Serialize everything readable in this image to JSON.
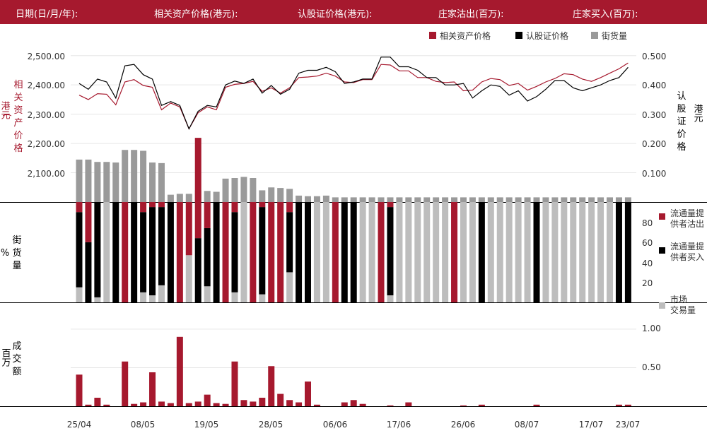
{
  "header": {
    "date_label": "日期(日/月/年):",
    "underlying_label": "相关资产价格(港元):",
    "warrant_label": "认股证价格(港元):",
    "sell_label": "庄家沽出(百万):",
    "buy_label": "庄家买入(百万):"
  },
  "legend": {
    "underlying": "相关资产价格",
    "warrant": "认股证价格",
    "outstanding": "街货量"
  },
  "axes": {
    "left_ylabel_chars": [
      "相",
      "关",
      "资",
      "产",
      "价",
      "格"
    ],
    "left_unit": "港元",
    "right_ylabel_chars": [
      "认",
      "股",
      "证",
      "价",
      "格"
    ],
    "right_unit": "港元",
    "mid_ylabel_chars": [
      "街",
      "货",
      "量"
    ],
    "mid_unit": "%",
    "bottom_ylabel_chars": [
      "成",
      "交",
      "额"
    ],
    "bottom_unit": "百万",
    "left_ticks": [
      "2,500.00",
      "2,400.00",
      "2,300.00",
      "2,200.00",
      "2,100.00"
    ],
    "right_ticks": [
      "0.500",
      "0.400",
      "0.300",
      "0.200",
      "0.100"
    ],
    "mid_ticks": [
      "80",
      "60",
      "40",
      "20"
    ],
    "bottom_ticks": [
      "1.00",
      "0.50"
    ],
    "x_ticks": [
      "25/04",
      "08/05",
      "19/05",
      "28/05",
      "06/06",
      "17/06",
      "26/06",
      "08/07",
      "17/07",
      "23/07"
    ]
  },
  "mid_legend": {
    "sell_line1": "流通量提",
    "sell_line2": "供者沽出",
    "buy_line1": "流通量提",
    "buy_line2": "供者买入",
    "market_line1": "市场",
    "market_line2": "交易量"
  },
  "colors": {
    "accent": "#a6192e",
    "black": "#000000",
    "outstanding_gray": "#9a9a9a",
    "market_gray": "#bdbdbd"
  },
  "chart_data": {
    "type": "line",
    "x_tick_indices": [
      0,
      7,
      14,
      21,
      28,
      35,
      42,
      49,
      56,
      60
    ],
    "underlying_ylim": [
      2000,
      2550
    ],
    "warrant_ylim": [
      0,
      0.55
    ],
    "outstanding_ylim": [
      0,
      0.55
    ],
    "mix_ylim": [
      0,
      100
    ],
    "turnover_ylim": [
      0,
      1.1
    ],
    "underlying": [
      2365,
      2350,
      2370,
      2368,
      2332,
      2410,
      2418,
      2398,
      2392,
      2315,
      2338,
      2325,
      2250,
      2305,
      2325,
      2315,
      2392,
      2402,
      2405,
      2412,
      2378,
      2390,
      2372,
      2390,
      2425,
      2427,
      2430,
      2440,
      2430,
      2410,
      2408,
      2418,
      2418,
      2470,
      2468,
      2448,
      2448,
      2425,
      2425,
      2412,
      2408,
      2410,
      2380,
      2382,
      2410,
      2422,
      2418,
      2398,
      2405,
      2382,
      2395,
      2410,
      2422,
      2438,
      2435,
      2420,
      2412,
      2425,
      2440,
      2455,
      2475
    ],
    "warrant": [
      0.405,
      0.385,
      0.42,
      0.41,
      0.355,
      0.465,
      0.47,
      0.435,
      0.42,
      0.33,
      0.343,
      0.33,
      0.25,
      0.31,
      0.33,
      0.325,
      0.4,
      0.413,
      0.405,
      0.42,
      0.372,
      0.398,
      0.368,
      0.385,
      0.44,
      0.45,
      0.45,
      0.46,
      0.445,
      0.405,
      0.41,
      0.42,
      0.42,
      0.495,
      0.495,
      0.462,
      0.462,
      0.45,
      0.425,
      0.425,
      0.4,
      0.4,
      0.405,
      0.355,
      0.38,
      0.4,
      0.395,
      0.365,
      0.38,
      0.345,
      0.36,
      0.385,
      0.415,
      0.415,
      0.39,
      0.38,
      0.39,
      0.4,
      0.415,
      0.425,
      0.46
    ],
    "outstanding": [
      0.145,
      0.145,
      0.137,
      0.137,
      0.135,
      0.178,
      0.178,
      0.175,
      0.135,
      0.133,
      0.025,
      0.028,
      0.028,
      0.04,
      0.038,
      0.035,
      0.08,
      0.082,
      0.086,
      0.082,
      0.04,
      0.05,
      0.048,
      0.045,
      0.022,
      0.02,
      0.02,
      0.022,
      0.016,
      0.016,
      0.016,
      0.016,
      0.016,
      0.016,
      0.016,
      0.016,
      0.016,
      0.016,
      0.016,
      0.016,
      0.016,
      0.016,
      0.016,
      0.016,
      0.016,
      0.016,
      0.016,
      0.016,
      0.016,
      0.016,
      0.016,
      0.016,
      0.016,
      0.016,
      0.016,
      0.016,
      0.016,
      0.016,
      0.016,
      0.016,
      0.016
    ],
    "sell_pct": [
      10,
      40,
      0,
      0,
      0,
      100,
      0,
      10,
      5,
      5,
      0,
      100,
      53,
      100,
      26,
      0,
      100,
      10,
      0,
      100,
      5,
      100,
      100,
      10,
      0,
      0,
      0,
      0,
      100,
      0,
      0,
      0,
      0,
      100,
      5,
      0,
      0,
      0,
      0,
      0,
      0,
      100,
      0,
      0,
      0,
      0,
      0,
      0,
      0,
      0,
      0,
      0,
      0,
      0,
      0,
      0,
      0,
      0,
      0,
      0,
      0
    ],
    "buy_pct": [
      75,
      60,
      95,
      0,
      100,
      0,
      100,
      80,
      88,
      78,
      100,
      0,
      0,
      64,
      58,
      100,
      0,
      80,
      0,
      0,
      87,
      0,
      0,
      60,
      100,
      100,
      0,
      0,
      0,
      100,
      100,
      0,
      0,
      0,
      88,
      0,
      0,
      0,
      0,
      0,
      0,
      0,
      0,
      0,
      100,
      0,
      0,
      0,
      0,
      0,
      100,
      0,
      0,
      0,
      0,
      0,
      0,
      0,
      0,
      100,
      100
    ],
    "turnover": [
      0.41,
      0.02,
      0.11,
      0.02,
      0,
      0.58,
      0.03,
      0.05,
      0.44,
      0.06,
      0.04,
      0.9,
      0.04,
      0.06,
      0.15,
      0.04,
      0.03,
      0.58,
      0.08,
      0.06,
      0.11,
      0.52,
      0.16,
      0.08,
      0.05,
      0.32,
      0.02,
      0,
      0,
      0.05,
      0.08,
      0.03,
      0,
      0,
      0.01,
      0,
      0.05,
      0,
      0,
      0,
      0,
      0,
      0.01,
      0,
      0.02,
      0,
      0,
      0,
      0,
      0,
      0.02,
      0,
      0,
      0,
      0,
      0,
      0,
      0,
      0,
      0.02,
      0.02
    ]
  }
}
